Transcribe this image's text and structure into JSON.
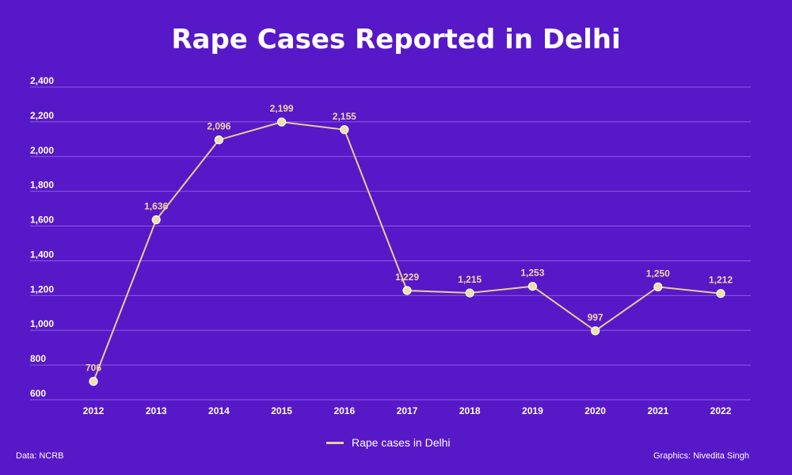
{
  "title": "Rape Cases Reported in Delhi",
  "source": "Data: NCRB",
  "credit": "Graphics: Nivedita Singh",
  "colors": {
    "background": "#5718c8",
    "line": "#e6cf94",
    "marker_fill": "#eedfb0",
    "grid": "#8a5de0",
    "label": "#f0d9a0"
  },
  "chart_data": {
    "type": "line",
    "title": "Rape Cases Reported in Delhi",
    "categories": [
      "2012",
      "2013",
      "2014",
      "2015",
      "2016",
      "2017",
      "2018",
      "2019",
      "2020",
      "2021",
      "2022"
    ],
    "series": [
      {
        "name": "Rape cases in Delhi",
        "values": [
          706,
          1636,
          2096,
          2199,
          2155,
          1229,
          1215,
          1253,
          997,
          1250,
          1212
        ]
      }
    ],
    "data_labels": [
      "706",
      "1,636",
      "2,096",
      "2,199",
      "2,155",
      "1,229",
      "1,215",
      "1,253",
      "997",
      "1,250",
      "1,212"
    ],
    "yticks": [
      "600",
      "800",
      "1,000",
      "1,200",
      "1,400",
      "1,600",
      "1,800",
      "2,000",
      "2,200",
      "2,400"
    ],
    "ytick_values": [
      600,
      800,
      1000,
      1200,
      1400,
      1600,
      1800,
      2000,
      2200,
      2400
    ],
    "ylim": [
      600,
      2400
    ],
    "grid": true,
    "legend": "bottom-center"
  }
}
